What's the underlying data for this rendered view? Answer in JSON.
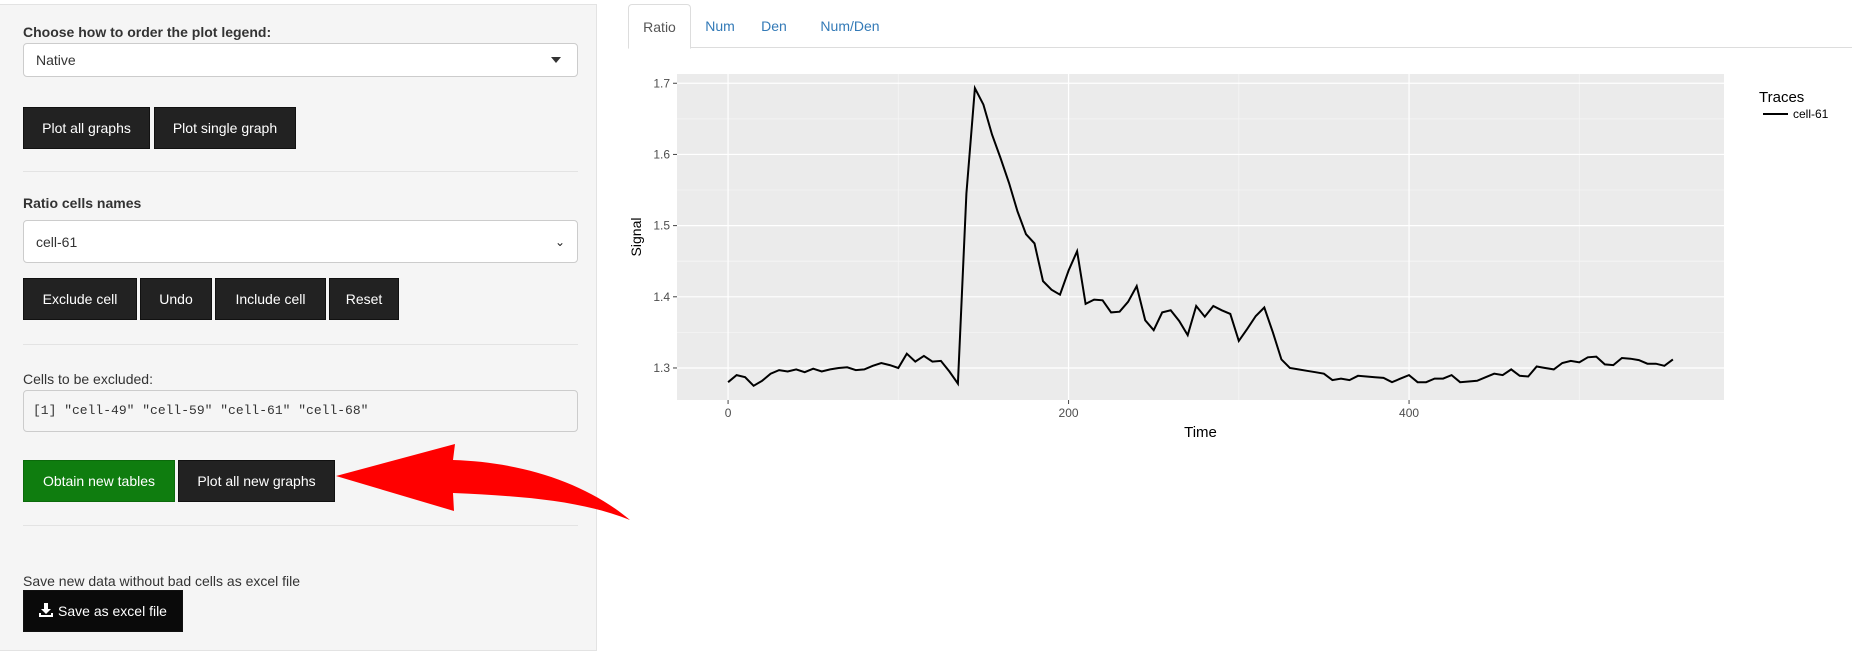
{
  "sidebar": {
    "legend_order_label": "Choose how to order the plot legend:",
    "legend_order_value": "Native",
    "plot_all_label": "Plot all graphs",
    "plot_single_label": "Plot single graph",
    "ratio_cells_label": "Ratio cells names",
    "ratio_cells_value": "cell-61",
    "exclude_label": "Exclude cell",
    "undo_label": "Undo",
    "include_label": "Include cell",
    "reset_label": "Reset",
    "excluded_label": "Cells to be excluded:",
    "excluded_output": "[1] \"cell-49\" \"cell-59\" \"cell-61\" \"cell-68\"",
    "obtain_label": "Obtain new tables",
    "plot_new_label": "Plot all new graphs",
    "save_text": "Save new data without bad cells as excel file",
    "save_button_label": "Save as excel file",
    "save_icon": "download-icon"
  },
  "tabs": [
    {
      "label": "Ratio",
      "active": true
    },
    {
      "label": "Num",
      "active": false
    },
    {
      "label": "Den",
      "active": false
    },
    {
      "label": "Num/Den",
      "active": false
    }
  ],
  "colors": {
    "accent_green": "#0f7d0f",
    "arrow_red": "#ff0000",
    "tab_link": "#337ab7",
    "panel_bg": "#ebebeb"
  },
  "annotation": {
    "type": "red-arrow",
    "points_to": "plot-all-new-graphs-button"
  },
  "chart_data": {
    "type": "line",
    "title": "",
    "xlabel": "Time",
    "ylabel": "Signal",
    "xlim": [
      -30,
      585
    ],
    "ylim": [
      1.255,
      1.713
    ],
    "xticks": [
      0,
      200,
      400
    ],
    "yticks": [
      1.3,
      1.4,
      1.5,
      1.6,
      1.7
    ],
    "ytick_labels": [
      "1.3",
      "1.4",
      "1.5",
      "1.6",
      "1.7"
    ],
    "grid": true,
    "legend_title": "Traces",
    "legend_position": "top-right",
    "series": [
      {
        "name": "cell-61",
        "color": "#000000",
        "x": [
          0,
          5,
          10,
          15,
          20,
          25,
          30,
          35,
          40,
          45,
          50,
          55,
          60,
          65,
          70,
          75,
          80,
          85,
          90,
          95,
          100,
          105,
          110,
          115,
          120,
          125,
          130,
          135,
          140,
          145,
          150,
          155,
          160,
          165,
          170,
          175,
          180,
          185,
          190,
          195,
          200,
          205,
          210,
          215,
          220,
          225,
          230,
          235,
          240,
          245,
          250,
          255,
          260,
          265,
          270,
          275,
          280,
          285,
          290,
          295,
          300,
          305,
          310,
          315,
          320,
          325,
          330,
          335,
          340,
          345,
          350,
          355,
          360,
          365,
          370,
          375,
          380,
          385,
          390,
          395,
          400,
          405,
          410,
          415,
          420,
          425,
          430,
          435,
          440,
          445,
          450,
          455,
          460,
          465,
          470,
          475,
          480,
          485,
          490,
          495,
          500,
          505,
          510,
          515,
          520,
          525,
          530,
          535,
          540,
          545,
          550,
          555
        ],
        "y": [
          1.28,
          1.29,
          1.287,
          1.275,
          1.282,
          1.292,
          1.297,
          1.295,
          1.298,
          1.294,
          1.299,
          1.295,
          1.298,
          1.3,
          1.301,
          1.297,
          1.298,
          1.303,
          1.307,
          1.304,
          1.3,
          1.32,
          1.309,
          1.317,
          1.309,
          1.31,
          1.295,
          1.278,
          1.545,
          1.693,
          1.67,
          1.628,
          1.595,
          1.56,
          1.52,
          1.488,
          1.475,
          1.422,
          1.41,
          1.403,
          1.437,
          1.464,
          1.39,
          1.396,
          1.395,
          1.378,
          1.379,
          1.393,
          1.415,
          1.367,
          1.353,
          1.378,
          1.381,
          1.366,
          1.346,
          1.387,
          1.372,
          1.387,
          1.381,
          1.376,
          1.338,
          1.355,
          1.373,
          1.385,
          1.35,
          1.312,
          1.3,
          1.298,
          1.296,
          1.294,
          1.292,
          1.283,
          1.285,
          1.283,
          1.289,
          1.288,
          1.287,
          1.286,
          1.28,
          1.285,
          1.29,
          1.28,
          1.28,
          1.285,
          1.285,
          1.29,
          1.28,
          1.281,
          1.282,
          1.287,
          1.292,
          1.29,
          1.298,
          1.289,
          1.288,
          1.302,
          1.3,
          1.298,
          1.307,
          1.31,
          1.308,
          1.315,
          1.316,
          1.305,
          1.304,
          1.314,
          1.313,
          1.311,
          1.306,
          1.306,
          1.303,
          1.312
        ]
      }
    ]
  }
}
